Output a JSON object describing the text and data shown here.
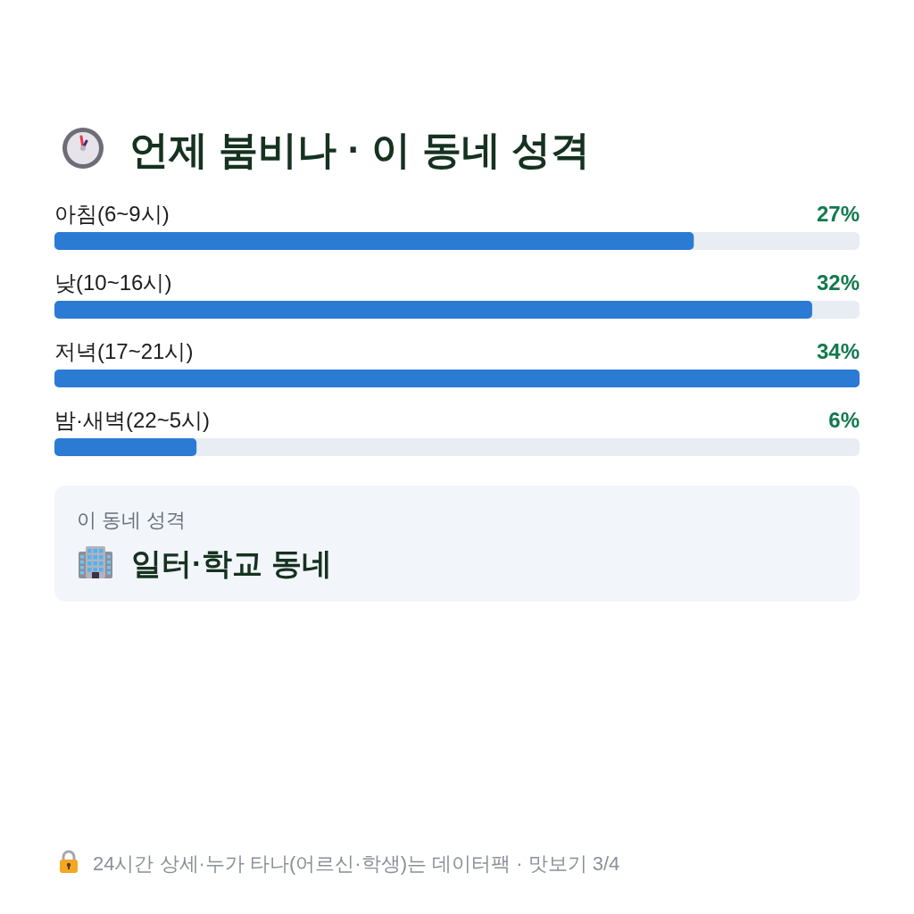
{
  "chart_data": [
    {
      "type": "bar",
      "title": "언제 붐비나 · 이 동네 성격",
      "orientation": "horizontal",
      "categories": [
        "아침(6~9시)",
        "낮(10~16시)",
        "저녁(17~21시)",
        "밤·새벽(22~5시)"
      ],
      "values": [
        27,
        32,
        34,
        6
      ],
      "value_labels": [
        "27%",
        "32%",
        "34%",
        "6%"
      ],
      "color": "#2b7bd4",
      "annotations": [
        "24시간 상세·누가 타나(어르신·학생)는 데이터팩 · 맛보기 3/4"
      ]
    },
    {
      "type": "other",
      "title": "이 동네 성격",
      "annotations": [
        "일터·학교 동네"
      ]
    }
  ]
}
